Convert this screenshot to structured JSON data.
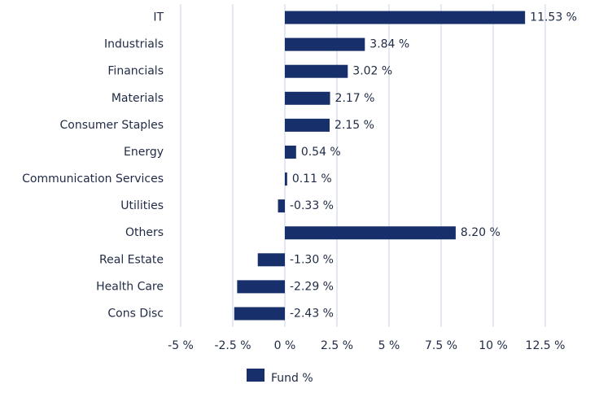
{
  "chart_data": {
    "type": "bar",
    "orientation": "horizontal",
    "categories": [
      "IT",
      "Industrials",
      "Financials",
      "Materials",
      "Consumer Staples",
      "Energy",
      "Communication Services",
      "Utilities",
      "Others",
      "Real Estate",
      "Health Care",
      "Cons Disc"
    ],
    "series": [
      {
        "name": "Fund %",
        "color": "#172f6b",
        "values": [
          11.53,
          3.84,
          3.02,
          2.17,
          2.15,
          0.54,
          0.11,
          -0.33,
          8.2,
          -1.3,
          -2.29,
          -2.43
        ],
        "value_labels": [
          "11.53 %",
          "3.84 %",
          "3.02 %",
          "2.17 %",
          "2.15 %",
          "0.54 %",
          "0.11 %",
          "-0.33 %",
          "8.20 %",
          "-1.30 %",
          "-2.29 %",
          "-2.43 %"
        ]
      }
    ],
    "xlim": [
      -5,
      12.5
    ],
    "xticks": [
      {
        "value": -5,
        "label": "-5 %"
      },
      {
        "value": -2.5,
        "label": "-2.5 %"
      },
      {
        "value": 0,
        "label": "0 %"
      },
      {
        "value": 2.5,
        "label": "2.5 %"
      },
      {
        "value": 5,
        "label": "5 %"
      },
      {
        "value": 7.5,
        "label": "7.5 %"
      },
      {
        "value": 10,
        "label": "10 %"
      },
      {
        "value": 12.5,
        "label": "12.5 %"
      }
    ],
    "grid": true,
    "legend": "bottom"
  }
}
